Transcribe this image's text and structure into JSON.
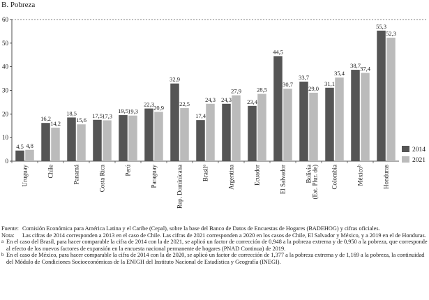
{
  "chart_data": {
    "type": "bar",
    "title": "B. Pobreza",
    "xlabel": "",
    "ylabel": "",
    "ylim": [
      0,
      60
    ],
    "yticks": [
      0,
      10,
      20,
      30,
      40,
      50,
      60
    ],
    "grid": false,
    "legend_position": "right",
    "categories": [
      {
        "label": "Uruguay"
      },
      {
        "label": "Chile"
      },
      {
        "label": "Panamá"
      },
      {
        "label": "Costa Rica"
      },
      {
        "label": "Perú"
      },
      {
        "label": "Paraguay"
      },
      {
        "label": "Rep. Dominicana"
      },
      {
        "label": "Brasil",
        "sup": "a"
      },
      {
        "label": "Argentina"
      },
      {
        "label": "Ecuador"
      },
      {
        "label": "El Salvador"
      },
      {
        "label": "Bolivia",
        "label2": "(Est. Plur. de)"
      },
      {
        "label": "Colombia"
      },
      {
        "label": "México",
        "sup": "b"
      },
      {
        "label": "Honduras"
      }
    ],
    "series": [
      {
        "name": "2014",
        "color": "#555555",
        "values": [
          4.5,
          16.2,
          18.5,
          17.5,
          19.5,
          22.3,
          32.9,
          17.4,
          24.3,
          23.4,
          44.5,
          33.7,
          31.1,
          38.7,
          55.3
        ],
        "labels": [
          "4,5",
          "16,2",
          "18,5",
          "17,5",
          "19,5",
          "22,3",
          "32,9",
          "17,4",
          "24,3",
          "23,4",
          "44,5",
          "33,7",
          "31,1",
          "38,7",
          "55,3"
        ]
      },
      {
        "name": "2021",
        "color": "#bbbbbb",
        "values": [
          4.8,
          14.2,
          15.6,
          17.3,
          19.3,
          20.9,
          22.5,
          24.3,
          27.9,
          28.5,
          30.7,
          29.0,
          35.4,
          37.4,
          52.3
        ],
        "labels": [
          "4,8",
          "14,2",
          "15,6",
          "17,3",
          "19,3",
          "20,9",
          "22,5",
          "24,3",
          "27,9",
          "28,5",
          "30,7",
          "29,0",
          "35,4",
          "37,4",
          "52,3"
        ]
      }
    ]
  },
  "notes": {
    "source_label": "Fuente:",
    "source_text": "Comisión Económica para América Latina y el Caribe (Cepal), sobre la base del Banco de Datos de Encuestas de Hogares (BADEHOG) y cifras oficiales.",
    "note_label": "Nota:",
    "note_text": "Las cifras de 2014 corresponden a 2013 en el caso de Chile. Las cifras de 2021 corresponden a 2020 en los casos de Chile, El Salvador y México, y a 2019 en el de Honduras.",
    "footnote_a_mark": "a",
    "footnote_a_text": "En el caso del Brasil, para hacer comparable la cifra de 2014 con la de 2021, se aplicó un factor de corrección de 0,948 a la pobreza extrema y de 0,950 a la pobreza, que corresponde al efecto de los nuevos factores de expansión en la encuesta nacional permanente de hogares (PNAD Continua) de 2019.",
    "footnote_b_mark": "b",
    "footnote_b_text": "En el caso de México, para hacer comparable la cifra de 2014 con la de 2020, se aplicó un factor de corrección de 1,377 a la pobreza extrema y de 1,169 a la pobreza, la continuidad del Módulo de Condiciones Socioeconómicas de la ENIGH del Instituto Nacional de Estadística y Geografía (INEGI)."
  }
}
